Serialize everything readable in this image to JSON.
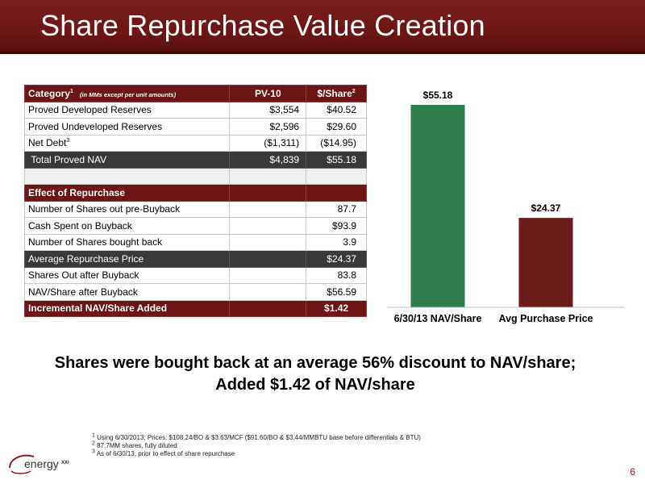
{
  "title": "Share Repurchase Value Creation",
  "table": {
    "header": {
      "category": "Category",
      "category_sup": "1",
      "note": "(in MMs except per unit amounts)",
      "pv10": "PV-10",
      "per_share": "$/Share",
      "per_share_sup": "2"
    },
    "rows": [
      {
        "label": "Proved Developed Reserves",
        "pv10": "$3,554",
        "per_share": "$40.52"
      },
      {
        "label": "Proved Undeveloped Reserves",
        "pv10": "$2,596",
        "per_share": "$29.60"
      },
      {
        "label": "Net Debt",
        "label_sup": "3",
        "pv10": "($1,311)",
        "per_share": "($14.95)"
      }
    ],
    "total": {
      "label": "Total Proved NAV",
      "pv10": "$4,839",
      "per_share": "$55.18"
    },
    "effect_header": "Effect of Repurchase",
    "effect_rows": [
      {
        "label": "Number of Shares out pre-Buyback",
        "value": "87.7"
      },
      {
        "label": "Cash Spent on Buyback",
        "value": "$93.9"
      },
      {
        "label": "Number of Shares bought back",
        "value": "3.9"
      },
      {
        "label": "Average Repurchase Price",
        "value": "$24.37"
      },
      {
        "label": "Shares Out after Buyback",
        "value": "83.8"
      },
      {
        "label": "NAV/Share after Buyback",
        "value": "$56.59"
      }
    ],
    "incremental": {
      "label": "Incremental NAV/Share Added",
      "value": "$1.42"
    }
  },
  "chart_data": {
    "type": "bar",
    "categories": [
      "6/30/13 NAV/Share",
      "Avg Purchase Price"
    ],
    "values": [
      55.18,
      24.37
    ],
    "data_labels": [
      "$55.18",
      "$24.37"
    ],
    "colors": [
      "#2e7d4f",
      "#6b1a1a"
    ],
    "ylim": [
      0,
      60
    ]
  },
  "headline": {
    "line1": "Shares were bought back at an average 56% discount to NAV/share;",
    "line2": "Added $1.42 of NAV/share"
  },
  "footnotes": [
    {
      "num": "1",
      "text": "Using 6/30/2013; Prices: $108.24/BO & $3.63/MCF ($91.60/BO & $3.44/MMBTU base before differentials & BTU)"
    },
    {
      "num": "2",
      "text": "87.7MM shares, fully diluted"
    },
    {
      "num": "3",
      "text": "As of 6/30/13, prior to effect of share repurchase"
    }
  ],
  "logo": {
    "text": "energy",
    "suffix": "XXI"
  },
  "page_number": "6",
  "colors": {
    "brand_maroon": "#6b1515",
    "dark_row": "#3a3a3a",
    "bar_green": "#2e7d4f",
    "bar_maroon": "#6b1a1a"
  }
}
